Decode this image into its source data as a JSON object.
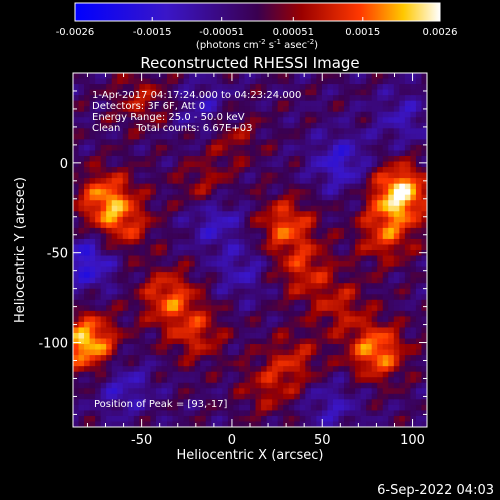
{
  "chart_data": {
    "type": "heatmap",
    "title": "Reconstructed RHESSI Image",
    "colorbar": {
      "ticks": [
        "-0.0026",
        "-0.0015",
        "-0.00051",
        "0.00051",
        "0.0015",
        "0.0026"
      ],
      "unit_prefix": "(photons cm",
      "unit_exp1": "-2",
      "unit_mid": " s",
      "unit_exp2": "-1",
      "unit_mid2": " asec",
      "unit_exp3": "-2",
      "unit_suffix": ")",
      "range": [
        -0.0026,
        0.0026
      ]
    },
    "annotations": [
      "1-Apr-2017 04:17:24.000 to 04:23:24.000",
      "Detectors: 3F 6F, Att 0",
      "Energy Range: 25.0 - 50.0 keV",
      "Clean     Total counts: 6.67E+03"
    ],
    "peak_label": "Position of Peak = [93,-17]",
    "xlabel": "Heliocentric X (arcsec)",
    "ylabel": "Heliocentric Y (arcsec)",
    "x_ticks": [
      -50,
      0,
      50,
      100
    ],
    "y_ticks": [
      0,
      -50,
      -100
    ],
    "xlim": [
      -88,
      108
    ],
    "ylim": [
      -147,
      50
    ],
    "hotspots": [
      {
        "x": -70,
        "y": -20,
        "v": 0.0018
      },
      {
        "x": -60,
        "y": -35,
        "v": 0.0012
      },
      {
        "x": -15,
        "y": -15,
        "v": 0.001
      },
      {
        "x": 30,
        "y": -35,
        "v": 0.0016
      },
      {
        "x": 40,
        "y": -60,
        "v": 0.0012
      },
      {
        "x": 93,
        "y": -17,
        "v": 0.0026
      },
      {
        "x": 85,
        "y": -40,
        "v": 0.0014
      },
      {
        "x": -35,
        "y": -75,
        "v": 0.0016
      },
      {
        "x": -20,
        "y": -95,
        "v": 0.0012
      },
      {
        "x": -80,
        "y": -100,
        "v": 0.0024
      },
      {
        "x": 80,
        "y": -105,
        "v": 0.002
      },
      {
        "x": 35,
        "y": -110,
        "v": 0.001
      },
      {
        "x": 60,
        "y": -80,
        "v": 0.001
      },
      {
        "x": -50,
        "y": 35,
        "v": 0.0009
      },
      {
        "x": 0,
        "y": 15,
        "v": 0.0008
      },
      {
        "x": 20,
        "y": -125,
        "v": 0.0009
      }
    ],
    "coldspots": [
      {
        "x": -10,
        "y": -30,
        "v": -0.0012
      },
      {
        "x": -80,
        "y": -55,
        "v": -0.0014
      },
      {
        "x": 60,
        "y": 0,
        "v": -0.0012
      },
      {
        "x": 5,
        "y": -60,
        "v": -0.0008
      },
      {
        "x": -60,
        "y": -125,
        "v": -0.0009
      },
      {
        "x": 55,
        "y": -135,
        "v": -0.0008
      },
      {
        "x": 95,
        "y": 25,
        "v": -0.0008
      },
      {
        "x": -15,
        "y": 30,
        "v": -0.0008
      }
    ]
  },
  "footer": {
    "date": "6-Sep-2022 04:03"
  }
}
